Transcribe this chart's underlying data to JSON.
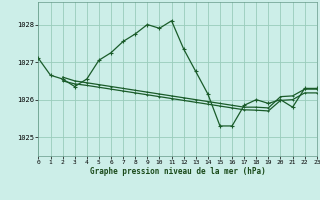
{
  "title": "Graphe pression niveau de la mer (hPa)",
  "background_color": "#cceee8",
  "grid_color": "#99ccbb",
  "line_color": "#1a5c2a",
  "xlim": [
    0,
    23
  ],
  "ylim": [
    1024.5,
    1028.6
  ],
  "yticks": [
    1025,
    1026,
    1027,
    1028
  ],
  "xticks": [
    0,
    1,
    2,
    3,
    4,
    5,
    6,
    7,
    8,
    9,
    10,
    11,
    12,
    13,
    14,
    15,
    16,
    17,
    18,
    19,
    20,
    21,
    22,
    23
  ],
  "series1": {
    "x": [
      0,
      1,
      2,
      3,
      4,
      5,
      6,
      7,
      8,
      9,
      10,
      11,
      12,
      13,
      14,
      15,
      16,
      17,
      18,
      19,
      20,
      21,
      22,
      23
    ],
    "y": [
      1027.1,
      1026.65,
      1026.55,
      1026.35,
      1026.55,
      1027.05,
      1027.25,
      1027.55,
      1027.75,
      1028.0,
      1027.9,
      1028.1,
      1027.35,
      1026.75,
      1026.15,
      1025.3,
      1025.3,
      1025.85,
      1026.0,
      1025.9,
      1026.0,
      1025.8,
      1026.3,
      1026.3
    ]
  },
  "series2": {
    "x": [
      2,
      3,
      4,
      5,
      6,
      7,
      8,
      9,
      10,
      11,
      12,
      13,
      14,
      15,
      16,
      17,
      18,
      19,
      20,
      21,
      22,
      23
    ],
    "y": [
      1026.6,
      1026.5,
      1026.45,
      1026.4,
      1026.35,
      1026.3,
      1026.25,
      1026.2,
      1026.15,
      1026.1,
      1026.05,
      1026.0,
      1025.95,
      1025.9,
      1025.85,
      1025.8,
      1025.8,
      1025.78,
      1026.08,
      1026.1,
      1026.28,
      1026.28
    ]
  },
  "series3": {
    "x": [
      2,
      3,
      4,
      5,
      6,
      7,
      8,
      9,
      10,
      11,
      12,
      13,
      14,
      15,
      16,
      17,
      18,
      19,
      20,
      21,
      22,
      23
    ],
    "y": [
      1026.5,
      1026.42,
      1026.38,
      1026.33,
      1026.28,
      1026.23,
      1026.18,
      1026.13,
      1026.08,
      1026.03,
      1025.98,
      1025.93,
      1025.88,
      1025.83,
      1025.78,
      1025.73,
      1025.72,
      1025.7,
      1025.98,
      1026.0,
      1026.18,
      1026.18
    ]
  },
  "marker_size": 2.0,
  "line_width": 0.9
}
